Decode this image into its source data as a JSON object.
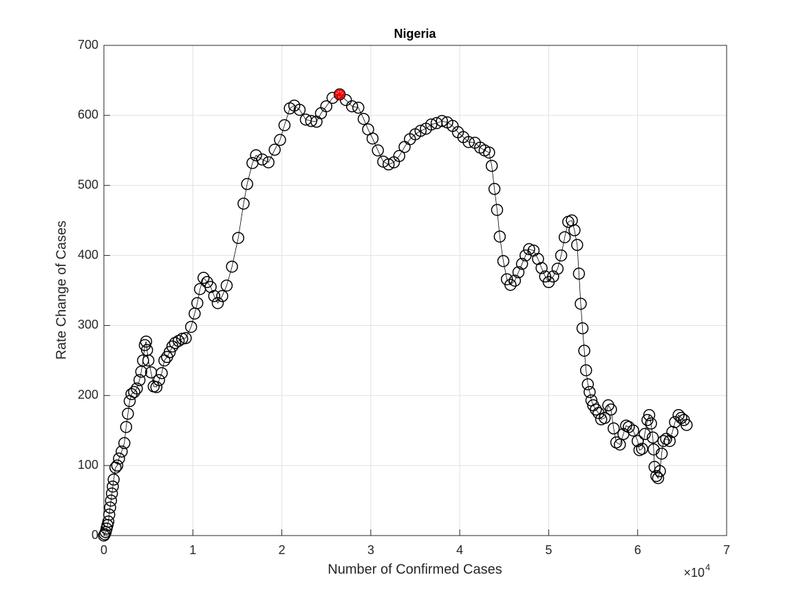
{
  "chart_data": {
    "type": "line",
    "title": "Nigeria",
    "xlabel": "Number of Confirmed Cases",
    "ylabel": "Rate Change of Cases",
    "x_multiplier": {
      "base": "×10",
      "exponent": "4"
    },
    "xlim": [
      0,
      70000
    ],
    "ylim": [
      0,
      700
    ],
    "xticks": [
      {
        "value": 0,
        "label": "0"
      },
      {
        "value": 10000,
        "label": "1"
      },
      {
        "value": 20000,
        "label": "2"
      },
      {
        "value": 30000,
        "label": "3"
      },
      {
        "value": 40000,
        "label": "4"
      },
      {
        "value": 50000,
        "label": "5"
      },
      {
        "value": 60000,
        "label": "6"
      },
      {
        "value": 70000,
        "label": "7"
      }
    ],
    "yticks": [
      0,
      100,
      200,
      300,
      400,
      500,
      600,
      700
    ],
    "grid": true,
    "series": [
      {
        "color": "#000000",
        "x": [
          0,
          100,
          200,
          300,
          400,
          500,
          600,
          700,
          800,
          900,
          1000,
          1100,
          1300,
          1500,
          1700,
          2000,
          2300,
          2500,
          2700,
          2900,
          3100,
          3400,
          3700,
          4000,
          4200,
          4400,
          4600,
          4750,
          4850,
          5000,
          5300,
          5600,
          5900,
          6200,
          6500,
          6800,
          7100,
          7400,
          7700,
          8000,
          8400,
          8800,
          9200,
          9800,
          10200,
          10500,
          10800,
          11200,
          11600,
          12000,
          12400,
          12800,
          13300,
          13800,
          14400,
          15100,
          15700,
          16100,
          16700,
          17100,
          17800,
          18500,
          19200,
          19800,
          20300,
          20900,
          21400,
          22000,
          22700,
          23300,
          23900,
          24400,
          25000,
          25700,
          26500,
          27200,
          27900,
          28600,
          29200,
          29700,
          30200,
          30800,
          31400,
          32000,
          32600,
          33200,
          33800,
          34400,
          35000,
          35600,
          36200,
          36800,
          37400,
          38000,
          38600,
          39200,
          39800,
          40400,
          41000,
          41700,
          42300,
          42800,
          43300,
          43600,
          43900,
          44200,
          44500,
          44900,
          45300,
          45700,
          46200,
          46600,
          47000,
          47400,
          47800,
          48300,
          48800,
          49200,
          49600,
          50000,
          50500,
          51000,
          51400,
          51800,
          52200,
          52600,
          52900,
          53200,
          53400,
          53600,
          53800,
          54000,
          54200,
          54400,
          54600,
          54800,
          55000,
          55300,
          55600,
          55900,
          56300,
          56700,
          57000,
          57300,
          57600,
          58000,
          58400,
          58700,
          59000,
          59500,
          60000,
          60200,
          60500,
          60800,
          61100,
          61300,
          61500,
          61700,
          61800,
          61900,
          62100,
          62300,
          62500,
          62700,
          62900,
          63200,
          63600,
          63900,
          64200,
          64600,
          64900,
          65200,
          65500
        ],
        "values": [
          0,
          2,
          5,
          10,
          15,
          20,
          30,
          40,
          50,
          60,
          70,
          80,
          97,
          100,
          110,
          120,
          132,
          155,
          174,
          192,
          202,
          205,
          210,
          222,
          234,
          250,
          272,
          277,
          265,
          250,
          233,
          213,
          212,
          222,
          232,
          250,
          255,
          262,
          270,
          275,
          278,
          281,
          282,
          298,
          317,
          332,
          352,
          368,
          362,
          355,
          342,
          332,
          342,
          357,
          384,
          425,
          474,
          502,
          532,
          543,
          537,
          533,
          551,
          565,
          586,
          610,
          614,
          608,
          594,
          592,
          591,
          603,
          613,
          625,
          630,
          622,
          613,
          611,
          595,
          580,
          567,
          550,
          534,
          530,
          533,
          542,
          555,
          566,
          573,
          578,
          581,
          587,
          589,
          592,
          590,
          585,
          576,
          569,
          562,
          561,
          554,
          550,
          547,
          528,
          495,
          465,
          427,
          392,
          366,
          358,
          364,
          376,
          388,
          400,
          409,
          407,
          395,
          382,
          370,
          362,
          370,
          381,
          400,
          426,
          448,
          450,
          436,
          415,
          374,
          331,
          296,
          264,
          236,
          216,
          205,
          193,
          186,
          180,
          175,
          166,
          168,
          186,
          180,
          153,
          133,
          130,
          145,
          157,
          155,
          150,
          135,
          122,
          124,
          145,
          165,
          172,
          160,
          140,
          123,
          98,
          85,
          82,
          92,
          117,
          135,
          138,
          135,
          148,
          162,
          172,
          168,
          165,
          158
        ]
      }
    ],
    "highlight": {
      "x": 26500,
      "y": 630,
      "color": "#ff0000"
    }
  }
}
